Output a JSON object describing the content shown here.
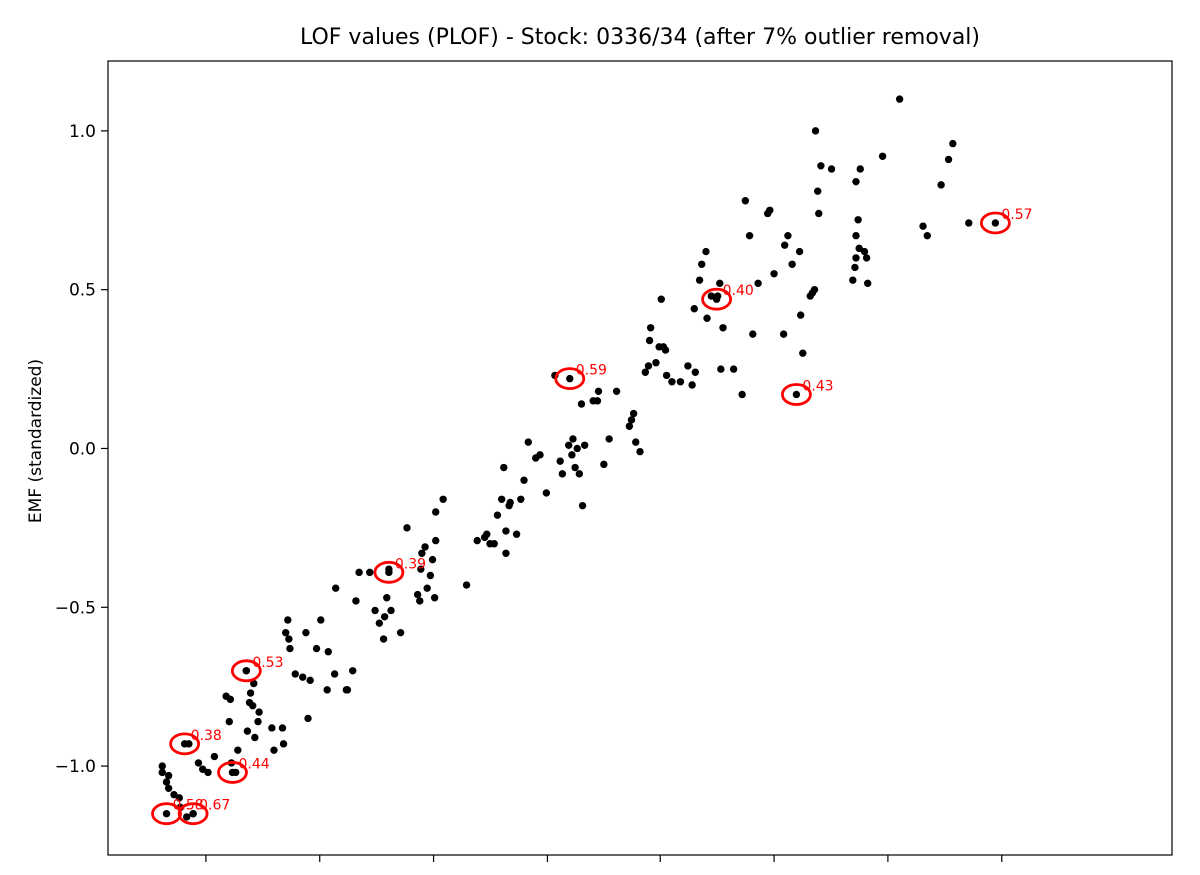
{
  "chart_data": {
    "type": "scatter",
    "title": "LOF values (PLOF) - Stock: 0336/34 (after 7% outlier removal)",
    "xlabel": "",
    "ylabel": "EMF (standardized)",
    "xlim": [
      0,
      1
    ],
    "ylim": [
      -1.28,
      1.22
    ],
    "yticks": [
      1.0,
      0.5,
      0.0,
      -0.5,
      -1.0
    ],
    "ytick_labels": [
      "1.0",
      "0.5",
      "0.0",
      "−0.5",
      "−1.0"
    ],
    "xticks": [
      0.092,
      0.199,
      0.306,
      0.413,
      0.519,
      0.626,
      0.733,
      0.84
    ],
    "grid": false,
    "legend": "none",
    "point_color": "#000000",
    "highlight_color": "#ff0000",
    "points": [
      [
        0.051,
        -1.0
      ],
      [
        0.051,
        -1.02
      ],
      [
        0.055,
        -1.05
      ],
      [
        0.057,
        -1.03
      ],
      [
        0.057,
        -1.07
      ],
      [
        0.062,
        -1.09
      ],
      [
        0.067,
        -1.1
      ],
      [
        0.068,
        -1.13
      ],
      [
        0.074,
        -1.16
      ],
      [
        0.076,
        -0.93
      ],
      [
        0.08,
        -1.15
      ],
      [
        0.085,
        -0.99
      ],
      [
        0.089,
        -1.01
      ],
      [
        0.094,
        -1.02
      ],
      [
        0.1,
        -0.97
      ],
      [
        0.111,
        -0.78
      ],
      [
        0.114,
        -0.86
      ],
      [
        0.115,
        -0.79
      ],
      [
        0.116,
        -0.99
      ],
      [
        0.12,
        -1.02
      ],
      [
        0.122,
        -0.95
      ],
      [
        0.13,
        -0.7
      ],
      [
        0.131,
        -0.89
      ],
      [
        0.133,
        -0.8
      ],
      [
        0.134,
        -0.77
      ],
      [
        0.136,
        -0.81
      ],
      [
        0.138,
        -0.91
      ],
      [
        0.137,
        -0.74
      ],
      [
        0.141,
        -0.86
      ],
      [
        0.142,
        -0.83
      ],
      [
        0.154,
        -0.88
      ],
      [
        0.156,
        -0.95
      ],
      [
        0.164,
        -0.88
      ],
      [
        0.165,
        -0.93
      ],
      [
        0.167,
        -0.58
      ],
      [
        0.169,
        -0.54
      ],
      [
        0.17,
        -0.6
      ],
      [
        0.171,
        -0.63
      ],
      [
        0.176,
        -0.71
      ],
      [
        0.183,
        -0.72
      ],
      [
        0.186,
        -0.58
      ],
      [
        0.188,
        -0.85
      ],
      [
        0.19,
        -0.73
      ],
      [
        0.196,
        -0.63
      ],
      [
        0.2,
        -0.54
      ],
      [
        0.206,
        -0.76
      ],
      [
        0.207,
        -0.64
      ],
      [
        0.213,
        -0.71
      ],
      [
        0.214,
        -0.44
      ],
      [
        0.224,
        -0.76
      ],
      [
        0.225,
        -0.76
      ],
      [
        0.23,
        -0.7
      ],
      [
        0.233,
        -0.48
      ],
      [
        0.236,
        -0.39
      ],
      [
        0.246,
        -0.39
      ],
      [
        0.251,
        -0.51
      ],
      [
        0.255,
        -0.55
      ],
      [
        0.259,
        -0.6
      ],
      [
        0.26,
        -0.53
      ],
      [
        0.262,
        -0.47
      ],
      [
        0.264,
        -0.38
      ],
      [
        0.266,
        -0.51
      ],
      [
        0.275,
        -0.58
      ],
      [
        0.281,
        -0.25
      ],
      [
        0.291,
        -0.46
      ],
      [
        0.293,
        -0.48
      ],
      [
        0.294,
        -0.38
      ],
      [
        0.295,
        -0.33
      ],
      [
        0.298,
        -0.31
      ],
      [
        0.3,
        -0.44
      ],
      [
        0.303,
        -0.4
      ],
      [
        0.305,
        -0.35
      ],
      [
        0.307,
        -0.47
      ],
      [
        0.308,
        -0.29
      ],
      [
        0.308,
        -0.2
      ],
      [
        0.315,
        -0.16
      ],
      [
        0.337,
        -0.43
      ],
      [
        0.347,
        -0.29
      ],
      [
        0.354,
        -0.28
      ],
      [
        0.356,
        -0.27
      ],
      [
        0.359,
        -0.3
      ],
      [
        0.363,
        -0.3
      ],
      [
        0.366,
        -0.21
      ],
      [
        0.37,
        -0.16
      ],
      [
        0.372,
        -0.06
      ],
      [
        0.374,
        -0.26
      ],
      [
        0.374,
        -0.33
      ],
      [
        0.377,
        -0.18
      ],
      [
        0.378,
        -0.17
      ],
      [
        0.384,
        -0.27
      ],
      [
        0.388,
        -0.16
      ],
      [
        0.391,
        -0.1
      ],
      [
        0.395,
        0.02
      ],
      [
        0.402,
        -0.03
      ],
      [
        0.406,
        -0.02
      ],
      [
        0.412,
        -0.14
      ],
      [
        0.42,
        0.23
      ],
      [
        0.425,
        -0.04
      ],
      [
        0.427,
        -0.08
      ],
      [
        0.433,
        0.01
      ],
      [
        0.436,
        -0.02
      ],
      [
        0.437,
        0.03
      ],
      [
        0.439,
        -0.06
      ],
      [
        0.441,
        0.0
      ],
      [
        0.443,
        -0.08
      ],
      [
        0.445,
        0.14
      ],
      [
        0.446,
        -0.18
      ],
      [
        0.448,
        0.01
      ],
      [
        0.456,
        0.15
      ],
      [
        0.46,
        0.15
      ],
      [
        0.461,
        0.18
      ],
      [
        0.466,
        -0.05
      ],
      [
        0.471,
        0.03
      ],
      [
        0.478,
        0.18
      ],
      [
        0.49,
        0.07
      ],
      [
        0.492,
        0.09
      ],
      [
        0.494,
        0.11
      ],
      [
        0.496,
        0.02
      ],
      [
        0.5,
        -0.01
      ],
      [
        0.505,
        0.24
      ],
      [
        0.508,
        0.26
      ],
      [
        0.509,
        0.34
      ],
      [
        0.51,
        0.38
      ],
      [
        0.515,
        0.27
      ],
      [
        0.518,
        0.32
      ],
      [
        0.52,
        0.47
      ],
      [
        0.522,
        0.32
      ],
      [
        0.524,
        0.31
      ],
      [
        0.525,
        0.23
      ],
      [
        0.53,
        0.21
      ],
      [
        0.538,
        0.21
      ],
      [
        0.545,
        0.26
      ],
      [
        0.549,
        0.2
      ],
      [
        0.551,
        0.44
      ],
      [
        0.552,
        0.24
      ],
      [
        0.556,
        0.53
      ],
      [
        0.558,
        0.58
      ],
      [
        0.562,
        0.62
      ],
      [
        0.563,
        0.41
      ],
      [
        0.567,
        0.48
      ],
      [
        0.573,
        0.48
      ],
      [
        0.576,
        0.25
      ],
      [
        0.575,
        0.52
      ],
      [
        0.578,
        0.38
      ],
      [
        0.588,
        0.25
      ],
      [
        0.596,
        0.17
      ],
      [
        0.599,
        0.78
      ],
      [
        0.603,
        0.67
      ],
      [
        0.606,
        0.36
      ],
      [
        0.611,
        0.52
      ],
      [
        0.62,
        0.74
      ],
      [
        0.622,
        0.75
      ],
      [
        0.626,
        0.55
      ],
      [
        0.635,
        0.36
      ],
      [
        0.636,
        0.64
      ],
      [
        0.639,
        0.67
      ],
      [
        0.643,
        0.58
      ],
      [
        0.65,
        0.62
      ],
      [
        0.651,
        0.42
      ],
      [
        0.653,
        0.3
      ],
      [
        0.66,
        0.48
      ],
      [
        0.662,
        0.49
      ],
      [
        0.664,
        0.5
      ],
      [
        0.665,
        1.0
      ],
      [
        0.667,
        0.81
      ],
      [
        0.668,
        0.74
      ],
      [
        0.67,
        0.89
      ],
      [
        0.68,
        0.88
      ],
      [
        0.7,
        0.53
      ],
      [
        0.702,
        0.57
      ],
      [
        0.703,
        0.6
      ],
      [
        0.703,
        0.67
      ],
      [
        0.703,
        0.84
      ],
      [
        0.705,
        0.72
      ],
      [
        0.706,
        0.63
      ],
      [
        0.707,
        0.88
      ],
      [
        0.711,
        0.62
      ],
      [
        0.713,
        0.6
      ],
      [
        0.714,
        0.52
      ],
      [
        0.728,
        0.92
      ],
      [
        0.744,
        1.1
      ],
      [
        0.766,
        0.7
      ],
      [
        0.77,
        0.67
      ],
      [
        0.783,
        0.83
      ],
      [
        0.79,
        0.91
      ],
      [
        0.794,
        0.96
      ],
      [
        0.809,
        0.71
      ]
    ],
    "highlighted": [
      {
        "x": 0.055,
        "y": -1.15,
        "label": "0.58"
      },
      {
        "x": 0.08,
        "y": -1.15,
        "label": "0.67"
      },
      {
        "x": 0.072,
        "y": -0.93,
        "label": "0.38"
      },
      {
        "x": 0.117,
        "y": -1.02,
        "label": "0.44"
      },
      {
        "x": 0.13,
        "y": -0.7,
        "label": "0.53"
      },
      {
        "x": 0.264,
        "y": -0.39,
        "label": "0.39"
      },
      {
        "x": 0.434,
        "y": 0.22,
        "label": "0.59"
      },
      {
        "x": 0.572,
        "y": 0.47,
        "label": "0.40"
      },
      {
        "x": 0.647,
        "y": 0.17,
        "label": "0.43"
      },
      {
        "x": 0.834,
        "y": 0.71,
        "label": "0.57"
      }
    ]
  }
}
